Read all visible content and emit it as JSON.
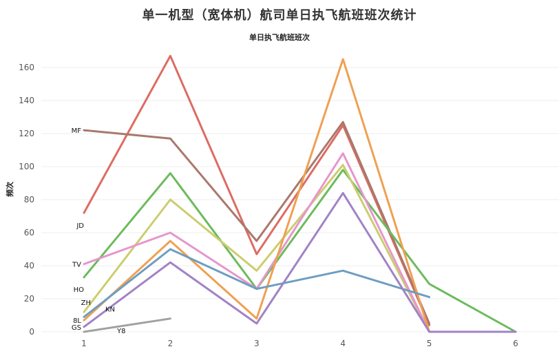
{
  "chart_data": {
    "type": "line",
    "title": "单一机型（宽体机）航司单日执飞航班班次统计",
    "subtitle": "单日执飞航班班次",
    "xlabel": "",
    "ylabel": "频次",
    "x": [
      1,
      2,
      3,
      4,
      5,
      6
    ],
    "xlim": [
      1,
      6
    ],
    "ylim": [
      0,
      170
    ],
    "yticks": [
      0,
      20,
      40,
      60,
      80,
      100,
      120,
      140,
      160
    ],
    "grid": true,
    "series": [
      {
        "name": "JD",
        "color": "#dd6b62",
        "points": [
          [
            1,
            72
          ],
          [
            2,
            167
          ],
          [
            3,
            47
          ],
          [
            4,
            125
          ],
          [
            5,
            4
          ]
        ]
      },
      {
        "name": "MF",
        "color": "#a9786c",
        "points": [
          [
            1,
            122
          ],
          [
            2,
            117
          ],
          [
            3,
            55
          ],
          [
            4,
            127
          ],
          [
            5,
            5
          ]
        ]
      },
      {
        "name": "HO",
        "color": "#6cbb5c",
        "points": [
          [
            1,
            33
          ],
          [
            2,
            96
          ],
          [
            3,
            26
          ],
          [
            4,
            98
          ],
          [
            5,
            29
          ],
          [
            6,
            0
          ]
        ]
      },
      {
        "name": "ZH",
        "color": "#cbcd6e",
        "points": [
          [
            1,
            12
          ],
          [
            2,
            80
          ],
          [
            3,
            37
          ],
          [
            4,
            101
          ],
          [
            5,
            0
          ]
        ]
      },
      {
        "name": "TV",
        "color": "#e597cc",
        "points": [
          [
            1,
            41
          ],
          [
            2,
            60
          ],
          [
            3,
            26
          ],
          [
            4,
            108
          ],
          [
            5,
            0
          ],
          [
            6,
            0
          ]
        ]
      },
      {
        "name": "8L",
        "color": "#efa052",
        "points": [
          [
            1,
            7
          ],
          [
            2,
            55
          ],
          [
            3,
            8
          ],
          [
            4,
            165
          ],
          [
            5,
            0
          ]
        ]
      },
      {
        "name": "KN",
        "color": "#6e9dc2",
        "points": [
          [
            1,
            9
          ],
          [
            2,
            50
          ],
          [
            3,
            26
          ],
          [
            4,
            37
          ],
          [
            5,
            21
          ]
        ]
      },
      {
        "name": "GS",
        "color": "#a182c5",
        "points": [
          [
            1,
            3
          ],
          [
            2,
            42
          ],
          [
            3,
            5
          ],
          [
            4,
            84
          ],
          [
            5,
            0
          ],
          [
            6,
            0
          ]
        ]
      },
      {
        "name": "Y8",
        "color": "#a0a0a0",
        "points": [
          [
            1,
            0
          ],
          [
            2,
            8
          ]
        ]
      }
    ]
  },
  "series_label_positions": {
    "MF": "left-of-start",
    "JD": "below-start",
    "TV": "left-of-start",
    "HO": "below-left-of-start",
    "ZH": "above-left-of-start",
    "8L": "left-of-start",
    "GS": "left-of-start",
    "KN": "right-of-start",
    "Y8": "below-right-of-start"
  }
}
